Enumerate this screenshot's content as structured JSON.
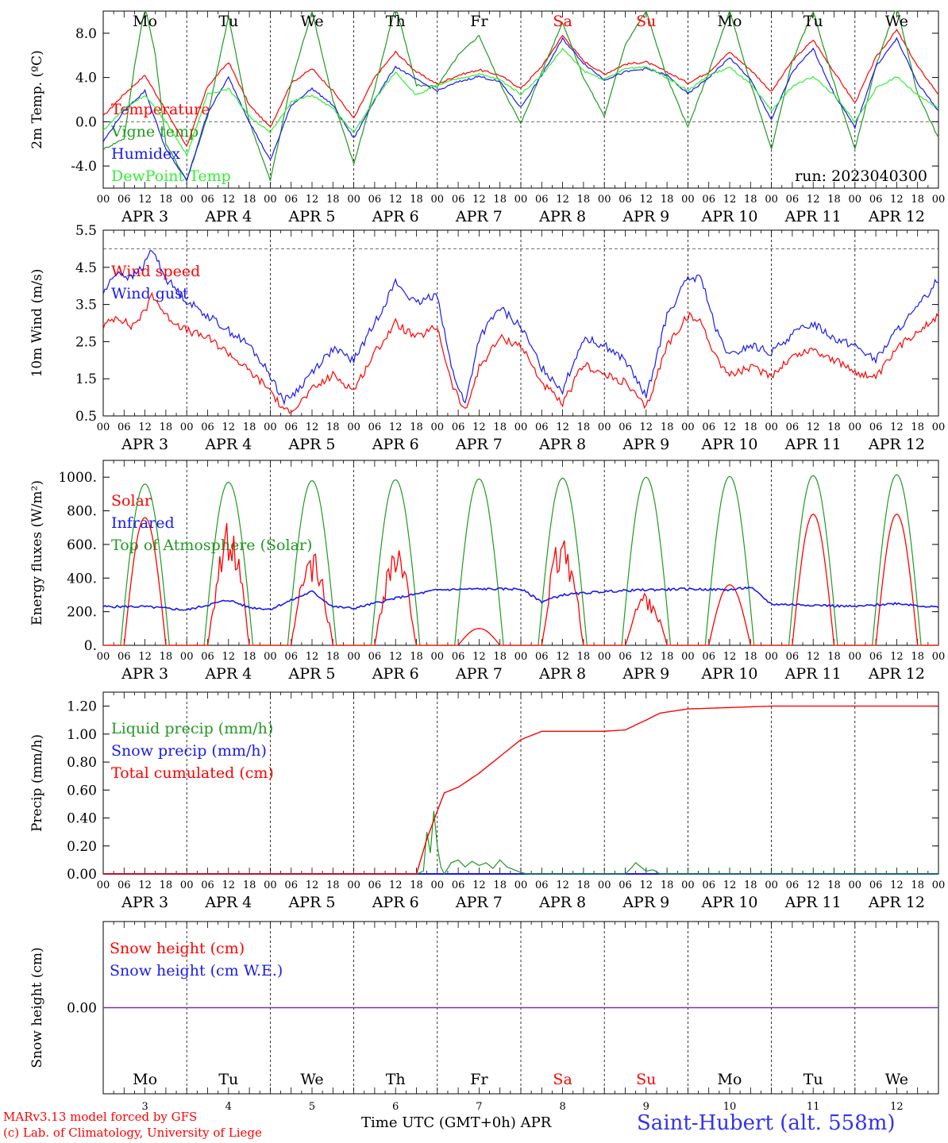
{
  "run_label": "run: 2023040300",
  "x_day_labels": [
    "APR  3",
    "APR  4",
    "APR  5",
    "APR  6",
    "APR  7",
    "APR  8",
    "APR  9",
    "APR 10",
    "APR 11",
    "APR 12"
  ],
  "x_hour_labels": [
    "00",
    "06",
    "12",
    "18"
  ],
  "x_end_label": "00",
  "weekdays": [
    {
      "label": "Mo",
      "color": "#000000"
    },
    {
      "label": "Tu",
      "color": "#000000"
    },
    {
      "label": "We",
      "color": "#000000"
    },
    {
      "label": "Th",
      "color": "#000000"
    },
    {
      "label": "Fr",
      "color": "#000000"
    },
    {
      "label": "Sa",
      "color": "#ff0000"
    },
    {
      "label": "Su",
      "color": "#ff0000"
    },
    {
      "label": "Mo",
      "color": "#000000"
    },
    {
      "label": "Tu",
      "color": "#000000"
    },
    {
      "label": "We",
      "color": "#000000"
    }
  ],
  "bottom_day_numbers": [
    "3",
    "4",
    "5",
    "6",
    "7",
    "8",
    "9",
    "10",
    "11",
    "12"
  ],
  "footer": {
    "model": "MARv3.13 model forced by GFS",
    "copyright": "(c) Lab. of Climatology, University of Liege",
    "xlabel": "Time UTC (GMT+0h) APR",
    "station": "Saint-Hubert (alt. 558m)"
  },
  "colors": {
    "red": "#ff0000",
    "dkgreen": "#229922",
    "blue": "#1a1aee",
    "ltgreen": "#33ee33",
    "purple": "#7733aa"
  },
  "chart_data": [
    {
      "type": "line",
      "ylabel": "2m Temp. (ºC)",
      "yticks": [
        "8.0",
        "4.0",
        "0.0",
        "-4.0"
      ],
      "ytick_values": [
        8,
        4,
        0,
        -4
      ],
      "ylim": [
        -6,
        10
      ],
      "dashed_hlines": [
        0
      ],
      "x_unit": "hours since 2023-04-03 00 UTC",
      "series": [
        {
          "name": "Temperature",
          "color": "#ff0000",
          "x": [
            0,
            6,
            12,
            18,
            24,
            30,
            36,
            42,
            48,
            54,
            60,
            66,
            72,
            78,
            84,
            90,
            96,
            102,
            108,
            114,
            120,
            126,
            132,
            138,
            144,
            150,
            156,
            162,
            168,
            174,
            180,
            186,
            192,
            198,
            204,
            210,
            216,
            222,
            228,
            234,
            240
          ],
          "y": [
            0.5,
            2.5,
            4.2,
            1.0,
            -2.2,
            3.2,
            5.4,
            1.5,
            -0.5,
            3.5,
            4.8,
            2.8,
            0.3,
            4.0,
            6.3,
            4.5,
            3.4,
            4.2,
            4.7,
            4.2,
            3.0,
            5.0,
            7.8,
            5.5,
            4.3,
            5.2,
            5.4,
            4.5,
            3.5,
            4.5,
            6.3,
            4.7,
            2.7,
            5.5,
            7.4,
            4.5,
            1.7,
            5.8,
            8.3,
            5.0,
            2.5
          ]
        },
        {
          "name": "Vigne temp",
          "color": "#229922",
          "x": [
            0,
            6,
            9,
            12,
            15,
            18,
            24,
            30,
            36,
            42,
            48,
            54,
            60,
            66,
            72,
            78,
            84,
            90,
            96,
            102,
            108,
            114,
            120,
            126,
            132,
            138,
            144,
            150,
            156,
            162,
            168,
            174,
            180,
            186,
            192,
            198,
            204,
            210,
            216,
            222,
            228,
            234,
            240
          ],
          "y": [
            -2.5,
            -1.5,
            5.0,
            10.5,
            6.0,
            -2.0,
            -5.3,
            0.5,
            9.5,
            0.0,
            -5.3,
            3.5,
            10.0,
            2.0,
            -3.8,
            3.0,
            10.5,
            3.3,
            3.2,
            6.0,
            7.8,
            3.5,
            -0.2,
            4.5,
            9.0,
            4.0,
            0.5,
            7.0,
            10.0,
            4.0,
            -0.5,
            4.5,
            10.0,
            3.5,
            -2.5,
            5.5,
            10.0,
            3.5,
            -2.5,
            5.0,
            10.5,
            2.5,
            -1.5
          ]
        },
        {
          "name": "Humidex",
          "color": "#1a1aee",
          "x": [
            0,
            6,
            12,
            18,
            24,
            30,
            36,
            42,
            48,
            54,
            60,
            66,
            72,
            78,
            84,
            90,
            96,
            102,
            108,
            114,
            120,
            126,
            132,
            138,
            144,
            150,
            156,
            162,
            168,
            174,
            180,
            186,
            192,
            198,
            204,
            210,
            216,
            222,
            228,
            234,
            240
          ],
          "y": [
            -1.8,
            1.0,
            2.8,
            -2.5,
            -5.3,
            0.8,
            4.0,
            0.0,
            -3.5,
            1.5,
            3.0,
            1.5,
            -1.5,
            2.0,
            5.0,
            3.8,
            2.8,
            3.6,
            4.1,
            3.6,
            1.3,
            4.2,
            7.5,
            5.3,
            3.8,
            4.5,
            4.8,
            4.2,
            2.5,
            4.0,
            5.8,
            3.8,
            0.2,
            4.5,
            6.6,
            2.5,
            -0.5,
            5.0,
            7.5,
            3.5,
            1.0
          ]
        },
        {
          "name": "DewPoint Temp",
          "color": "#33ee33",
          "x": [
            0,
            6,
            12,
            18,
            24,
            30,
            36,
            42,
            48,
            54,
            60,
            66,
            72,
            78,
            84,
            90,
            96,
            102,
            108,
            114,
            120,
            126,
            132,
            138,
            144,
            150,
            156,
            162,
            168,
            174,
            180,
            186,
            192,
            198,
            204,
            210,
            216,
            222,
            228,
            234,
            240
          ],
          "y": [
            -0.8,
            1.2,
            2.4,
            0.0,
            -3.0,
            2.5,
            3.0,
            0.5,
            -1.0,
            1.8,
            2.4,
            1.2,
            -1.0,
            2.0,
            4.5,
            2.4,
            3.3,
            3.9,
            4.3,
            3.8,
            2.5,
            4.2,
            6.6,
            4.6,
            3.8,
            4.8,
            5.0,
            4.0,
            2.8,
            4.2,
            4.9,
            3.4,
            1.0,
            3.2,
            4.1,
            2.4,
            0.0,
            3.0,
            4.1,
            2.4,
            1.2
          ]
        }
      ]
    },
    {
      "type": "line",
      "ylabel": "10m Wind (m/s)",
      "yticks": [
        "5.5",
        "4.5",
        "3.5",
        "2.5",
        "1.5",
        "0.5"
      ],
      "ytick_values": [
        5.5,
        4.5,
        3.5,
        2.5,
        1.5,
        0.5
      ],
      "ylim": [
        0.5,
        5.5
      ],
      "dashed_hlines": [
        5.0
      ],
      "x_unit": "hours since 2023-04-03 00 UTC",
      "series": [
        {
          "name": "Wind speed",
          "color": "#ff0000",
          "x": [
            0,
            4,
            8,
            12,
            14,
            18,
            24,
            30,
            36,
            42,
            48,
            52,
            56,
            60,
            66,
            72,
            78,
            84,
            90,
            96,
            100,
            104,
            108,
            114,
            120,
            126,
            132,
            138,
            144,
            150,
            156,
            162,
            168,
            172,
            176,
            180,
            186,
            192,
            198,
            204,
            210,
            216,
            222,
            228,
            234,
            240
          ],
          "y": [
            2.9,
            3.2,
            2.9,
            3.3,
            3.8,
            3.2,
            2.8,
            2.6,
            2.2,
            1.7,
            1.2,
            0.6,
            0.8,
            1.2,
            1.6,
            1.2,
            2.2,
            3.0,
            2.6,
            2.9,
            1.4,
            0.6,
            1.8,
            2.6,
            2.4,
            1.4,
            0.8,
            1.9,
            1.6,
            1.4,
            0.7,
            2.4,
            3.2,
            3.0,
            2.1,
            1.6,
            1.8,
            1.6,
            2.1,
            2.3,
            2.0,
            1.7,
            1.5,
            2.3,
            2.8,
            3.2
          ]
        },
        {
          "name": "Wind gust",
          "color": "#1a1aee",
          "x": [
            0,
            4,
            8,
            12,
            14,
            18,
            24,
            30,
            36,
            42,
            48,
            52,
            56,
            60,
            66,
            72,
            78,
            84,
            90,
            96,
            100,
            104,
            108,
            114,
            120,
            126,
            132,
            138,
            144,
            150,
            156,
            162,
            168,
            172,
            176,
            180,
            186,
            192,
            198,
            204,
            210,
            216,
            222,
            228,
            234,
            240
          ],
          "y": [
            3.8,
            4.4,
            4.2,
            4.6,
            5.0,
            4.2,
            3.6,
            3.2,
            2.8,
            2.4,
            1.6,
            0.9,
            1.2,
            1.7,
            2.3,
            2.0,
            3.0,
            4.1,
            3.5,
            3.8,
            1.8,
            0.8,
            2.6,
            3.4,
            2.9,
            1.8,
            1.2,
            2.6,
            2.4,
            2.0,
            1.0,
            3.2,
            4.2,
            4.2,
            2.8,
            2.1,
            2.4,
            2.2,
            2.7,
            3.0,
            2.6,
            2.4,
            2.0,
            2.8,
            3.4,
            4.2
          ]
        }
      ]
    },
    {
      "type": "line",
      "ylabel": "Energy fluxes (W/m²)",
      "yticks": [
        "1000.",
        "800.",
        "600.",
        "400.",
        "200.",
        "0."
      ],
      "ytick_values": [
        1000,
        800,
        600,
        400,
        200,
        0
      ],
      "ylim": [
        0,
        1100
      ],
      "x_unit": "hours since 2023-04-03 00 UTC",
      "solar_peaks": [
        760,
        740,
        580,
        620,
        100,
        690,
        340,
        360,
        780,
        780
      ],
      "toa_peaks": [
        960,
        970,
        980,
        985,
        990,
        995,
        1000,
        1005,
        1010,
        1015
      ],
      "infrared_points": {
        "x": [
          0,
          12,
          24,
          36,
          42,
          48,
          60,
          66,
          72,
          84,
          96,
          108,
          120,
          126,
          132,
          144,
          156,
          168,
          180,
          186,
          192,
          204,
          216,
          228,
          240
        ],
        "y": [
          230,
          230,
          210,
          270,
          225,
          215,
          320,
          230,
          220,
          280,
          330,
          335,
          335,
          260,
          300,
          320,
          330,
          335,
          330,
          345,
          245,
          240,
          230,
          250,
          225
        ]
      },
      "series": [
        {
          "name": "Solar",
          "color": "#ff0000"
        },
        {
          "name": "Infrared",
          "color": "#1a1aee"
        },
        {
          "name": "Top of Atmosphere (Solar)",
          "color": "#229922"
        }
      ]
    },
    {
      "type": "line",
      "ylabel": "Precip (mm/h)",
      "yticks": [
        "1.20",
        "1.00",
        "0.80",
        "0.60",
        "0.40",
        "0.20",
        "0.00"
      ],
      "ytick_values": [
        1.2,
        1.0,
        0.8,
        0.6,
        0.4,
        0.2,
        0.0
      ],
      "ylim": [
        0,
        1.3
      ],
      "x_unit": "hours since 2023-04-03 00 UTC",
      "series": [
        {
          "name": "Liquid precip (mm/h)",
          "color": "#229922",
          "x": [
            0,
            90,
            92,
            93,
            94,
            95,
            96,
            97,
            98,
            100,
            102,
            104,
            106,
            108,
            110,
            112,
            114,
            116,
            118,
            120,
            122,
            124,
            150,
            152,
            153,
            155,
            156,
            158,
            160,
            240
          ],
          "y": [
            0,
            0,
            0.02,
            0.3,
            0.15,
            0.45,
            0.2,
            0.05,
            0.0,
            0.08,
            0.1,
            0.05,
            0.09,
            0.06,
            0.08,
            0.04,
            0.1,
            0.05,
            0.03,
            0.01,
            0.0,
            0.0,
            0.0,
            0.05,
            0.08,
            0.04,
            0.02,
            0.03,
            0.0,
            0.0
          ]
        },
        {
          "name": "Snow precip (mm/h)",
          "color": "#1a1aee",
          "x": [
            0,
            240
          ],
          "y": [
            0,
            0
          ]
        },
        {
          "name": "Total cumulated (cm)",
          "color": "#ff0000",
          "x": [
            0,
            90,
            93,
            96,
            98,
            102,
            108,
            114,
            120,
            126,
            132,
            144,
            150,
            156,
            160,
            168,
            180,
            192,
            204,
            216,
            228,
            240
          ],
          "y": [
            0,
            0,
            0.25,
            0.45,
            0.58,
            0.62,
            0.72,
            0.84,
            0.96,
            1.02,
            1.02,
            1.02,
            1.03,
            1.1,
            1.15,
            1.18,
            1.19,
            1.2,
            1.2,
            1.2,
            1.2,
            1.2
          ]
        }
      ]
    },
    {
      "type": "line",
      "ylabel": "Snow height (cm)",
      "yticks": [
        "0.00"
      ],
      "ytick_values": [
        0
      ],
      "ylim": [
        -1,
        1
      ],
      "x_unit": "hours since 2023-04-03 00 UTC",
      "series": [
        {
          "name": "Snow height (cm)",
          "color": "#ff0000",
          "x": [
            0,
            240
          ],
          "y": [
            0,
            0
          ]
        },
        {
          "name": "Snow height (cm W.E.)",
          "color": "#1a1aee",
          "x": [
            0,
            240
          ],
          "y": [
            0,
            0
          ]
        }
      ]
    }
  ]
}
